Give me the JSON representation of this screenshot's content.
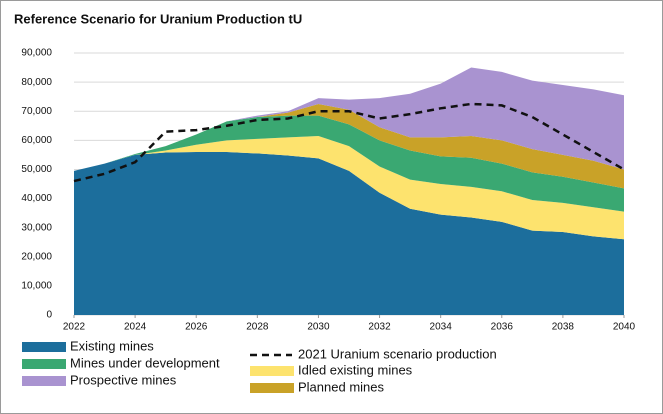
{
  "chart_data": {
    "type": "stacked_area",
    "title": "Reference Scenario for Uranium Production tU",
    "x": [
      2022,
      2023,
      2024,
      2025,
      2026,
      2027,
      2028,
      2029,
      2030,
      2031,
      2032,
      2033,
      2034,
      2035,
      2036,
      2037,
      2038,
      2039,
      2040
    ],
    "xlim": [
      2022,
      2040
    ],
    "xticks": [
      2022,
      2024,
      2026,
      2028,
      2030,
      2032,
      2034,
      2036,
      2038,
      2040
    ],
    "ylim": [
      0,
      90000
    ],
    "yticks": [
      0,
      {
        "value": 10000,
        "label": "10,000"
      },
      {
        "value": 20000,
        "label": "20,000"
      },
      {
        "value": 30000,
        "label": "30,000"
      },
      {
        "value": 40000,
        "label": "40,000"
      },
      {
        "value": 50000,
        "label": "50,000"
      },
      {
        "value": 60000,
        "label": "60,000"
      },
      {
        "value": 70000,
        "label": "70,000"
      },
      {
        "value": 80000,
        "label": "80,000"
      },
      {
        "value": 90000,
        "label": "90,000"
      }
    ],
    "grid": true,
    "series": [
      {
        "name": "Existing mines",
        "color": "#1c6e9c",
        "values": [
          49500,
          52000,
          55000,
          55800,
          56000,
          56000,
          55500,
          54800,
          53800,
          49500,
          42000,
          36500,
          34500,
          33500,
          32000,
          29000,
          28500,
          27000,
          26000
        ]
      },
      {
        "name": "Idled existing mines",
        "color": "#fde36e",
        "values": [
          0,
          0,
          0,
          700,
          2500,
          4000,
          5000,
          6200,
          7700,
          8500,
          9000,
          10000,
          10500,
          10500,
          10500,
          10500,
          10000,
          10000,
          9500
        ]
      },
      {
        "name": "Mines under development",
        "color": "#3aa872",
        "values": [
          0,
          0,
          300,
          1500,
          3500,
          6500,
          7500,
          7500,
          7000,
          7500,
          9000,
          10000,
          9500,
          10000,
          9500,
          9500,
          9000,
          8500,
          8000
        ]
      },
      {
        "name": "Planned mines",
        "color": "#c9a228",
        "values": [
          0,
          0,
          0,
          0,
          0,
          0,
          0,
          1000,
          4000,
          5000,
          4500,
          4500,
          6500,
          7500,
          8000,
          8000,
          7500,
          7500,
          6500
        ]
      },
      {
        "name": "Prospective mines",
        "color": "#a993d0",
        "values": [
          0,
          0,
          0,
          0,
          0,
          0,
          500,
          500,
          2000,
          3500,
          10000,
          15000,
          18500,
          23500,
          23500,
          23500,
          24000,
          24500,
          25500
        ]
      },
      {
        "name": "2021 Uranium scenario production",
        "color": "#111111",
        "type": "line",
        "dashed": true,
        "values": [
          46000,
          48500,
          52500,
          63000,
          63500,
          65000,
          67000,
          67500,
          70000,
          70000,
          67500,
          69000,
          71000,
          72500,
          72000,
          68000,
          62000,
          56000,
          50000
        ]
      }
    ]
  }
}
